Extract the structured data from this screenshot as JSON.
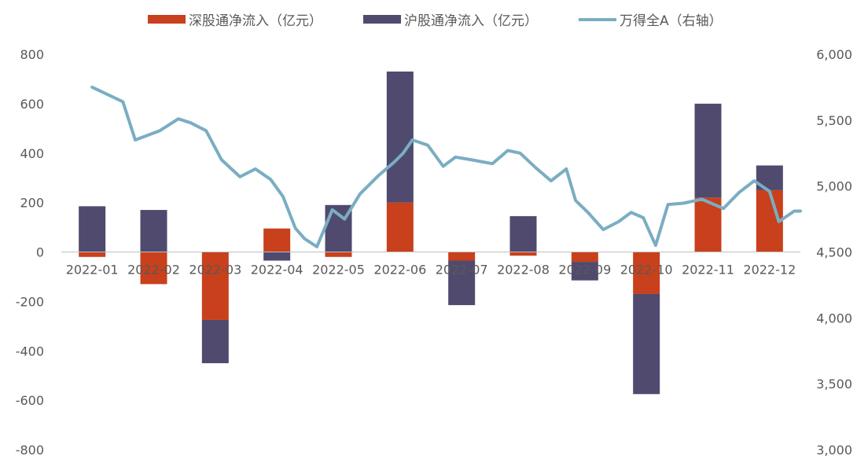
{
  "chart_data": {
    "type": "bar",
    "stacked": true,
    "legend": {
      "placement": "top",
      "items": [
        {
          "key": "sz",
          "label": "深股通净流入（亿元）",
          "color": "#C8401C",
          "shape": "bar"
        },
        {
          "key": "sh",
          "label": "沪股通净流入（亿元）",
          "color": "#504A6E",
          "shape": "bar"
        },
        {
          "key": "wind",
          "label": "万得全A（右轴）",
          "color": "#7AADC2",
          "shape": "line"
        }
      ]
    },
    "categories": [
      "2022-01",
      "2022-02",
      "2022-03",
      "2022-04",
      "2022-05",
      "2022-06",
      "2022-07",
      "2022-08",
      "2022-09",
      "2022-10",
      "2022-11",
      "2022-12"
    ],
    "series": [
      {
        "name": "深股通净流入（亿元）",
        "color": "#C8401C",
        "values": [
          -20,
          -130,
          -275,
          95,
          -20,
          200,
          -35,
          -15,
          -40,
          -170,
          220,
          250
        ]
      },
      {
        "name": "沪股通净流入（亿元）",
        "color": "#504A6E",
        "values": [
          185,
          170,
          -175,
          -35,
          190,
          530,
          -180,
          145,
          -75,
          -405,
          380,
          100
        ]
      }
    ],
    "left_axis": {
      "range": [
        -800,
        800
      ],
      "ticks": [
        "800",
        "600",
        "400",
        "200",
        "0",
        "-200",
        "-400",
        "-600",
        "-800"
      ]
    },
    "right_axis": {
      "range": [
        3000,
        6000
      ],
      "ticks": [
        "6,000",
        "5,500",
        "5,000",
        "4,500",
        "4,000",
        "3,500",
        "3,000"
      ]
    },
    "line": {
      "name": "万得全A（右轴）",
      "color": "#7AADC2",
      "x": [
        0,
        0.5,
        0.7,
        1.1,
        1.4,
        1.6,
        1.85,
        2.1,
        2.4,
        2.65,
        2.9,
        3.1,
        3.3,
        3.45,
        3.65,
        3.9,
        4.1,
        4.35,
        4.65,
        4.9,
        5.05,
        5.2,
        5.45,
        5.7,
        5.9,
        6.15,
        6.5,
        6.75,
        6.95,
        7.2,
        7.45,
        7.7,
        7.85,
        8.05,
        8.3,
        8.55,
        8.75,
        8.95,
        9.15,
        9.35,
        9.6,
        9.9,
        10.25,
        10.5,
        10.75,
        11,
        11.15,
        11.4,
        11.5
      ],
      "values": [
        5750,
        5640,
        5350,
        5420,
        5510,
        5480,
        5420,
        5200,
        5070,
        5130,
        5050,
        4920,
        4680,
        4600,
        4540,
        4820,
        4750,
        4940,
        5080,
        5180,
        5250,
        5350,
        5310,
        5150,
        5220,
        5200,
        5170,
        5270,
        5250,
        5140,
        5040,
        5130,
        4890,
        4800,
        4670,
        4730,
        4800,
        4760,
        4550,
        4860,
        4870,
        4900,
        4830,
        4950,
        5040,
        4960,
        4730,
        4810,
        4810
      ]
    }
  }
}
